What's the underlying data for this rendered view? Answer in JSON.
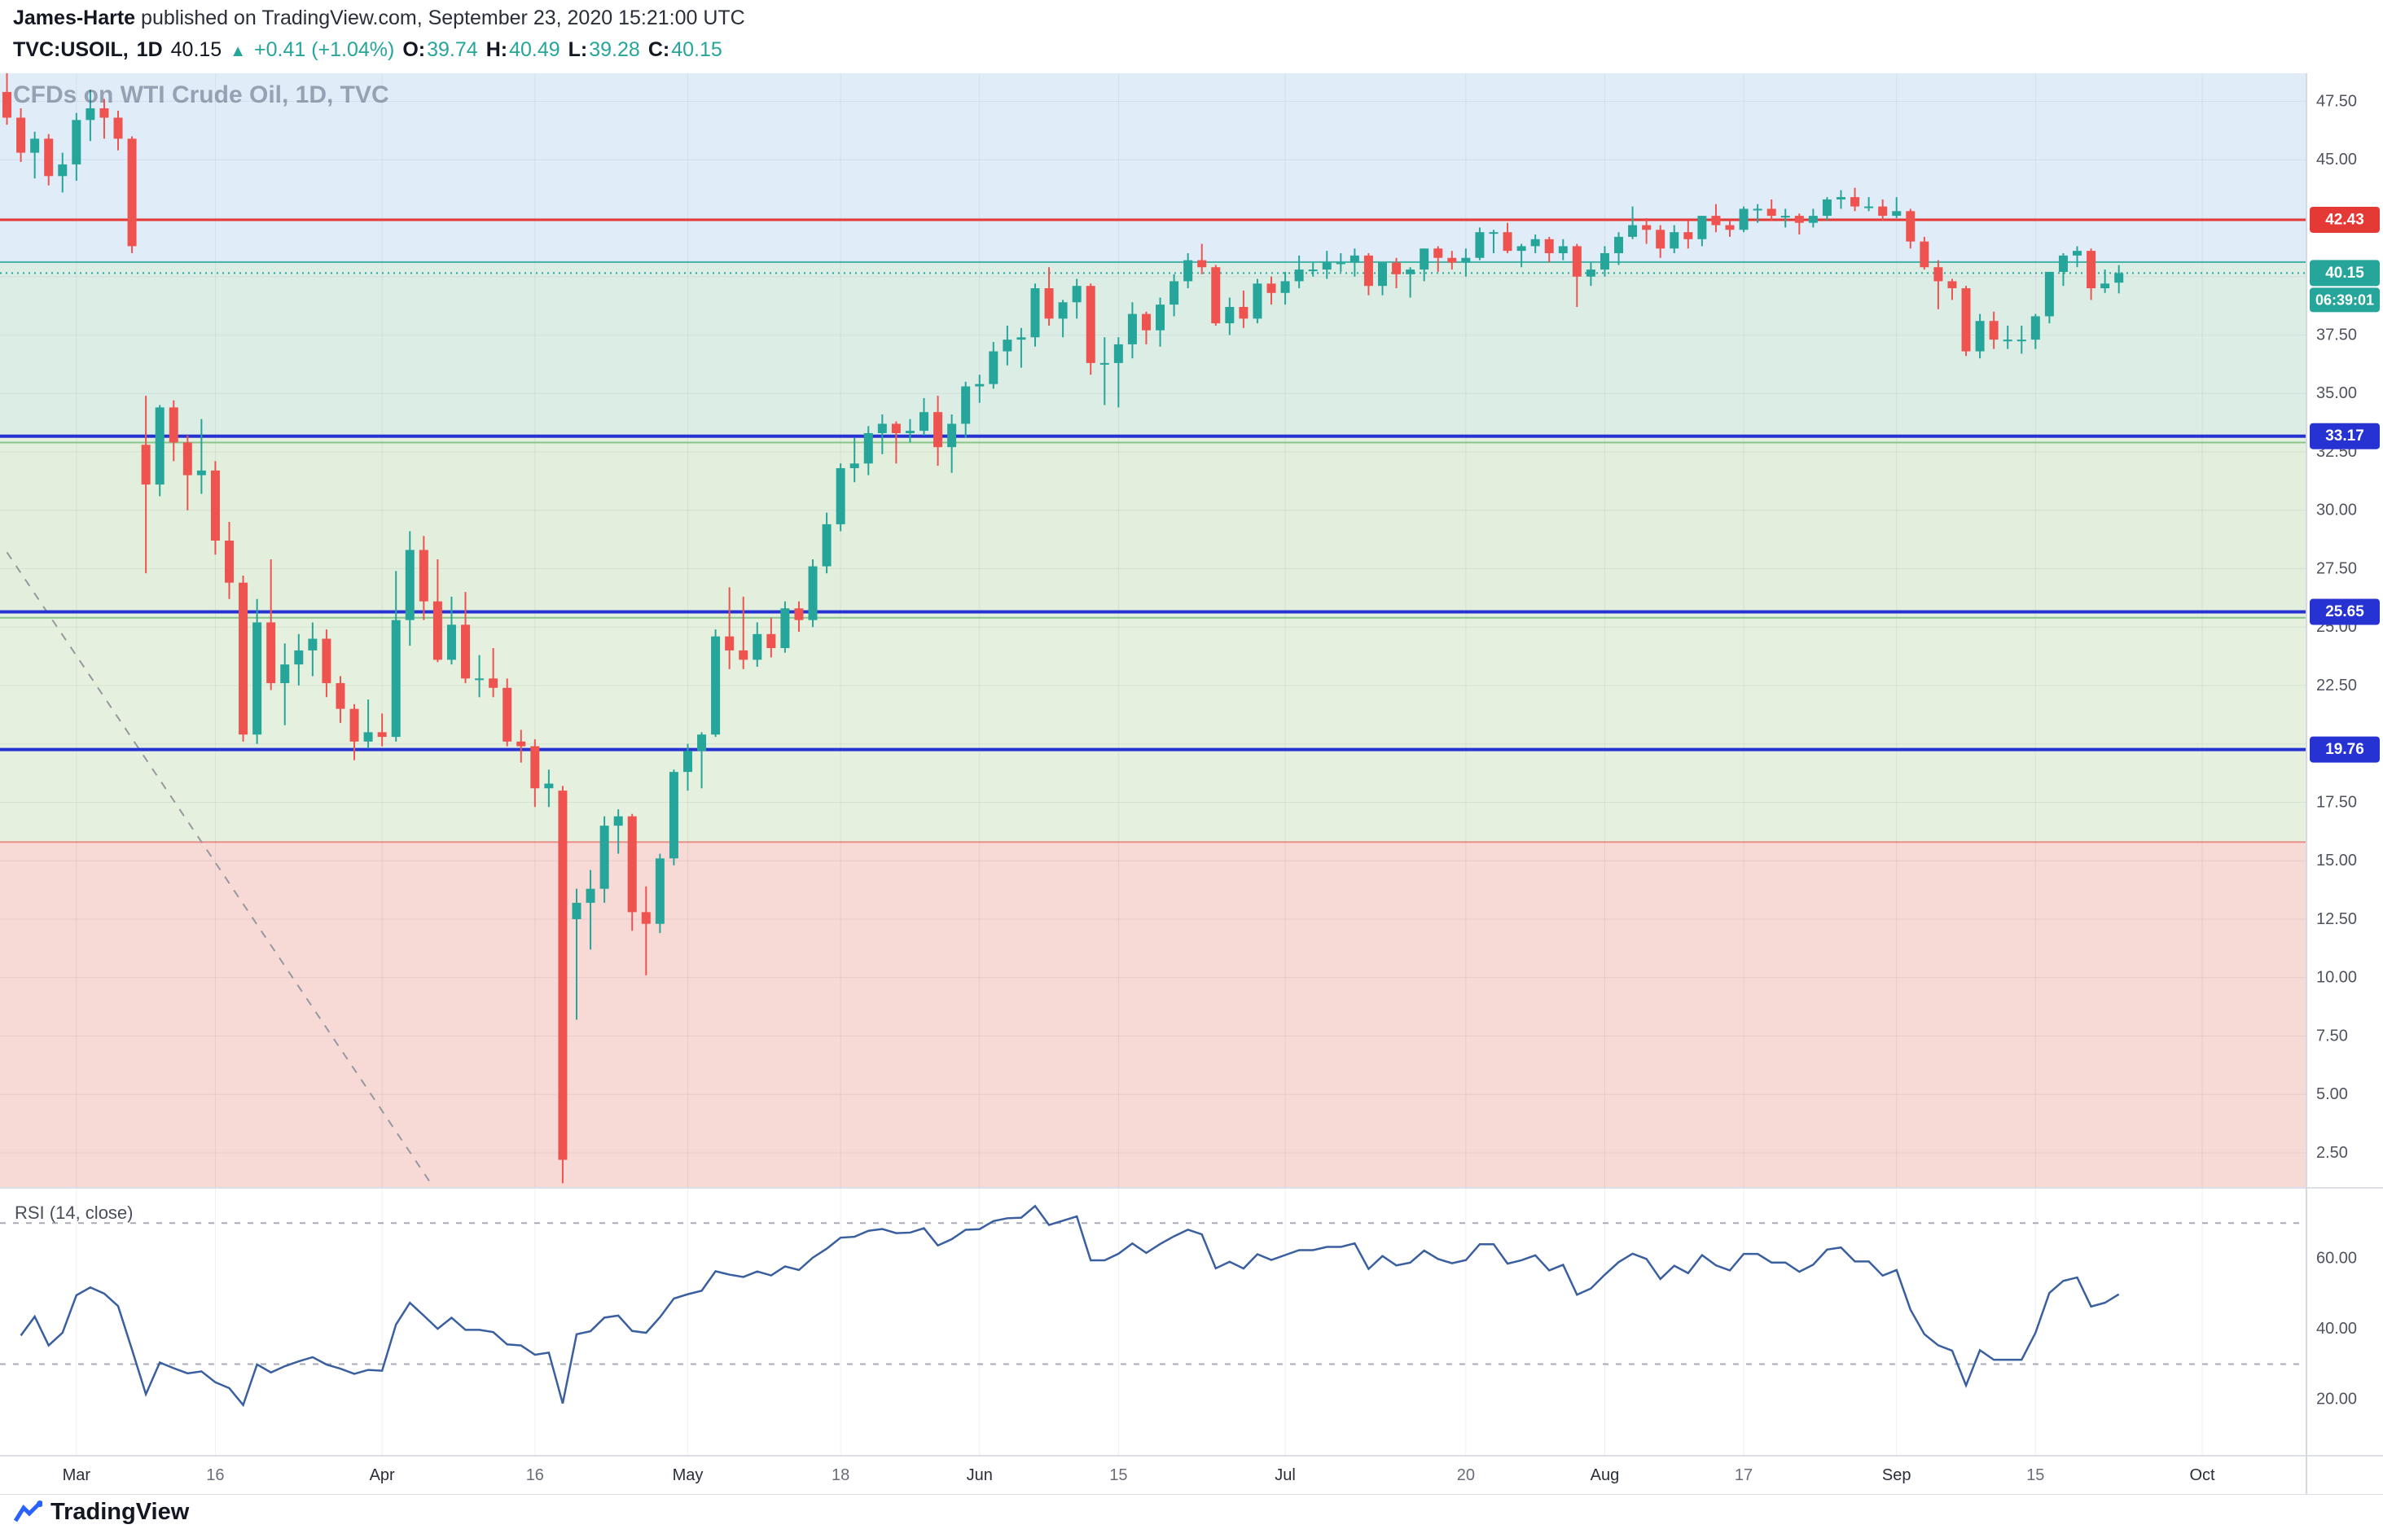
{
  "header": {
    "author": "James-Harte",
    "published": "published on TradingView.com, September 23, 2020 15:21:00 UTC",
    "symbol": "TVC:USOIL,",
    "interval": "1D",
    "last_price": "40.15",
    "change_arrow": "▲",
    "change_text": "+0.41 (+1.04%)",
    "ohlc": [
      {
        "label": "O:",
        "value": "39.74"
      },
      {
        "label": "H:",
        "value": "40.49"
      },
      {
        "label": "L:",
        "value": "39.28"
      },
      {
        "label": "C:",
        "value": "40.15"
      }
    ]
  },
  "watermark": "CFDs on WTI Crude Oil, 1D, TVC",
  "footer": {
    "brand": "TradingView"
  },
  "colors": {
    "up": "#26a69a",
    "down": "#ef5350",
    "level_blue": "#2732d3",
    "level_red": "#e53935",
    "last_price": "#26a69a",
    "rsi_line": "#3a5f9e",
    "band_blue": "#e0edf8",
    "band_teal": "#dcede6",
    "band_green_upper": "#e2efdc",
    "band_green_lower": "#e5f1de",
    "band_red": "#f7d9d6",
    "grid": "rgba(42,46,57,0.07)",
    "axis_text": "#50535e",
    "time_major": "#2a2e39",
    "time_minor": "#6a6e79"
  },
  "chart_data": {
    "type": "candlestick",
    "title": "CFDs on WTI Crude Oil, 1D, TVC",
    "symbol": "TVC:USOIL",
    "interval": "1D",
    "price_axis": {
      "min": 1.0,
      "max": 48.7,
      "tick_step": 2.5,
      "visible_ticks": [
        "47.50",
        "45.00",
        "37.50",
        "35.00",
        "32.50",
        "30.00",
        "27.50",
        "25.00",
        "22.50",
        "17.50",
        "15.00",
        "12.50",
        "10.00",
        "7.50",
        "5.00",
        "2.50"
      ]
    },
    "time_axis": {
      "total_slots": 166,
      "labels": [
        {
          "text": "Mar",
          "slot": 5,
          "major": true
        },
        {
          "text": "16",
          "slot": 15,
          "major": false
        },
        {
          "text": "Apr",
          "slot": 27,
          "major": true
        },
        {
          "text": "16",
          "slot": 38,
          "major": false
        },
        {
          "text": "May",
          "slot": 49,
          "major": true
        },
        {
          "text": "18",
          "slot": 60,
          "major": false
        },
        {
          "text": "Jun",
          "slot": 70,
          "major": true
        },
        {
          "text": "15",
          "slot": 80,
          "major": false
        },
        {
          "text": "Jul",
          "slot": 92,
          "major": true
        },
        {
          "text": "20",
          "slot": 105,
          "major": false
        },
        {
          "text": "Aug",
          "slot": 115,
          "major": true
        },
        {
          "text": "17",
          "slot": 125,
          "major": false
        },
        {
          "text": "Sep",
          "slot": 136,
          "major": true
        },
        {
          "text": "15",
          "slot": 146,
          "major": false
        },
        {
          "text": "Oct",
          "slot": 158,
          "major": true
        }
      ]
    },
    "bands": [
      {
        "from": 48.7,
        "to": 40.62,
        "color_key": "band_blue"
      },
      {
        "from": 40.62,
        "to": 33.17,
        "color_key": "band_teal"
      },
      {
        "from": 33.17,
        "to": 25.65,
        "color_key": "band_green_upper"
      },
      {
        "from": 25.65,
        "to": 15.8,
        "color_key": "band_green_lower"
      },
      {
        "from": 15.8,
        "to": 1.0,
        "color_key": "band_red"
      }
    ],
    "band_edges": [
      {
        "price": 40.62,
        "color": "rgba(38,166,154,0.85)",
        "width": 2
      },
      {
        "price": 32.9,
        "color": "rgba(67,160,71,0.55)",
        "width": 2
      },
      {
        "price": 25.4,
        "color": "rgba(67,160,71,0.55)",
        "width": 2
      },
      {
        "price": 15.8,
        "color": "rgba(229,57,53,0.5)",
        "width": 2
      }
    ],
    "levels": [
      {
        "price": 42.43,
        "label": "42.43",
        "color": "#e53935",
        "width": 3
      },
      {
        "price": 33.17,
        "label": "33.17",
        "color": "#2732d3",
        "width": 4
      },
      {
        "price": 25.65,
        "label": "25.65",
        "color": "#2732d3",
        "width": 4
      },
      {
        "price": 19.76,
        "label": "19.76",
        "color": "#2732d3",
        "width": 4
      }
    ],
    "last_price": {
      "value": 40.15,
      "label": "40.15",
      "countdown": "06:39:01",
      "color": "#26a69a"
    },
    "trendline": {
      "from_slot": 0,
      "from_price": 28.2,
      "to_slot": 30.5,
      "to_price": 1.2,
      "style": "dashed",
      "color": "#9598a1"
    },
    "candles": {
      "up_color": "#26a69a",
      "down_color": "#ef5350",
      "ohlc": [
        [
          47.9,
          48.7,
          46.5,
          46.8
        ],
        [
          46.8,
          47.2,
          44.9,
          45.3
        ],
        [
          45.3,
          46.2,
          44.2,
          45.9
        ],
        [
          45.9,
          46.1,
          43.9,
          44.3
        ],
        [
          44.3,
          45.3,
          43.6,
          44.8
        ],
        [
          44.8,
          47.0,
          44.1,
          46.7
        ],
        [
          46.7,
          48.0,
          45.8,
          47.2
        ],
        [
          47.2,
          47.6,
          45.9,
          46.8
        ],
        [
          46.8,
          47.1,
          45.4,
          45.9
        ],
        [
          45.9,
          46.0,
          41.0,
          41.3
        ],
        [
          32.8,
          34.9,
          27.3,
          31.1
        ],
        [
          31.1,
          34.5,
          30.6,
          34.4
        ],
        [
          34.4,
          34.7,
          32.1,
          32.9
        ],
        [
          32.9,
          33.2,
          30.0,
          31.5
        ],
        [
          31.5,
          33.9,
          30.7,
          31.7
        ],
        [
          31.7,
          32.1,
          28.1,
          28.7
        ],
        [
          28.7,
          29.5,
          26.2,
          26.9
        ],
        [
          26.9,
          27.2,
          20.1,
          20.4
        ],
        [
          20.4,
          26.2,
          20.0,
          25.2
        ],
        [
          25.2,
          27.9,
          22.3,
          22.6
        ],
        [
          22.6,
          24.3,
          20.8,
          23.4
        ],
        [
          23.4,
          24.7,
          22.5,
          24.0
        ],
        [
          24.0,
          25.2,
          22.9,
          24.5
        ],
        [
          24.5,
          24.9,
          22.0,
          22.6
        ],
        [
          22.6,
          22.9,
          20.9,
          21.5
        ],
        [
          21.5,
          21.7,
          19.3,
          20.1
        ],
        [
          20.1,
          21.9,
          19.8,
          20.5
        ],
        [
          20.5,
          21.3,
          19.9,
          20.3
        ],
        [
          20.3,
          27.4,
          20.1,
          25.3
        ],
        [
          25.3,
          29.1,
          24.2,
          28.3
        ],
        [
          28.3,
          28.9,
          25.3,
          26.1
        ],
        [
          26.1,
          27.9,
          23.5,
          23.6
        ],
        [
          23.6,
          26.3,
          23.4,
          25.1
        ],
        [
          25.1,
          26.5,
          22.6,
          22.8
        ],
        [
          22.8,
          23.8,
          22.0,
          22.8
        ],
        [
          22.8,
          24.1,
          22.0,
          22.4
        ],
        [
          22.4,
          22.8,
          19.9,
          20.1
        ],
        [
          20.1,
          20.6,
          19.2,
          19.9
        ],
        [
          19.9,
          20.2,
          17.3,
          18.1
        ],
        [
          18.1,
          18.9,
          17.3,
          18.3
        ],
        [
          18.0,
          18.2,
          1.2,
          2.2
        ],
        [
          12.5,
          13.8,
          8.2,
          13.2
        ],
        [
          13.2,
          14.6,
          11.2,
          13.8
        ],
        [
          13.8,
          16.9,
          13.2,
          16.5
        ],
        [
          16.5,
          17.2,
          15.3,
          16.9
        ],
        [
          16.9,
          17.0,
          12.0,
          12.8
        ],
        [
          12.8,
          13.9,
          10.1,
          12.3
        ],
        [
          12.3,
          15.3,
          11.9,
          15.1
        ],
        [
          15.1,
          18.9,
          14.8,
          18.8
        ],
        [
          18.8,
          20.0,
          18.0,
          19.7
        ],
        [
          19.7,
          20.5,
          18.1,
          20.4
        ],
        [
          20.4,
          24.9,
          20.3,
          24.6
        ],
        [
          24.6,
          26.7,
          23.2,
          24.0
        ],
        [
          24.0,
          26.3,
          23.2,
          23.6
        ],
        [
          23.6,
          25.2,
          23.3,
          24.7
        ],
        [
          24.7,
          25.4,
          23.7,
          24.1
        ],
        [
          24.1,
          26.1,
          23.9,
          25.8
        ],
        [
          25.8,
          26.1,
          24.8,
          25.3
        ],
        [
          25.3,
          27.9,
          25.0,
          27.6
        ],
        [
          27.6,
          29.9,
          27.3,
          29.4
        ],
        [
          29.4,
          32.0,
          29.1,
          31.8
        ],
        [
          31.8,
          33.1,
          31.2,
          32.0
        ],
        [
          32.0,
          33.6,
          31.5,
          33.3
        ],
        [
          33.3,
          34.1,
          32.4,
          33.7
        ],
        [
          33.7,
          33.8,
          32.0,
          33.3
        ],
        [
          33.3,
          33.9,
          32.9,
          33.4
        ],
        [
          33.4,
          34.8,
          33.2,
          34.2
        ],
        [
          34.2,
          34.9,
          31.9,
          32.7
        ],
        [
          32.7,
          34.1,
          31.6,
          33.7
        ],
        [
          33.7,
          35.5,
          33.1,
          35.3
        ],
        [
          35.3,
          35.8,
          34.6,
          35.4
        ],
        [
          35.4,
          37.2,
          35.2,
          36.8
        ],
        [
          36.8,
          37.9,
          36.2,
          37.3
        ],
        [
          37.3,
          37.8,
          36.1,
          37.4
        ],
        [
          37.4,
          39.7,
          37.0,
          39.5
        ],
        [
          39.5,
          40.4,
          37.9,
          38.2
        ],
        [
          38.2,
          39.0,
          37.4,
          38.9
        ],
        [
          38.9,
          39.9,
          38.2,
          39.6
        ],
        [
          39.6,
          39.7,
          35.8,
          36.3
        ],
        [
          36.3,
          37.4,
          34.5,
          36.3
        ],
        [
          36.3,
          37.4,
          34.4,
          37.1
        ],
        [
          37.1,
          38.9,
          36.5,
          38.4
        ],
        [
          38.4,
          38.5,
          37.1,
          37.7
        ],
        [
          37.7,
          39.1,
          37.0,
          38.8
        ],
        [
          38.8,
          40.1,
          38.3,
          39.8
        ],
        [
          39.8,
          41.0,
          39.5,
          40.7
        ],
        [
          40.7,
          41.4,
          40.1,
          40.4
        ],
        [
          40.4,
          40.5,
          37.9,
          38.0
        ],
        [
          38.0,
          39.1,
          37.5,
          38.7
        ],
        [
          38.7,
          39.4,
          37.8,
          38.2
        ],
        [
          38.2,
          39.9,
          38.0,
          39.7
        ],
        [
          39.7,
          40.0,
          38.8,
          39.3
        ],
        [
          39.3,
          40.2,
          38.8,
          39.8
        ],
        [
          39.8,
          40.9,
          39.5,
          40.3
        ],
        [
          40.3,
          40.6,
          40.0,
          40.3
        ],
        [
          40.3,
          41.1,
          39.9,
          40.6
        ],
        [
          40.6,
          41.0,
          40.2,
          40.6
        ],
        [
          40.6,
          41.2,
          40.0,
          40.9
        ],
        [
          40.9,
          41.0,
          39.2,
          39.6
        ],
        [
          39.6,
          40.6,
          39.2,
          40.6
        ],
        [
          40.6,
          40.8,
          39.5,
          40.1
        ],
        [
          40.1,
          40.4,
          39.1,
          40.3
        ],
        [
          40.3,
          41.2,
          39.8,
          41.2
        ],
        [
          41.2,
          41.3,
          40.2,
          40.8
        ],
        [
          40.8,
          41.1,
          40.3,
          40.6
        ],
        [
          40.6,
          41.2,
          40.0,
          40.8
        ],
        [
          40.8,
          42.1,
          40.7,
          41.9
        ],
        [
          41.9,
          42.0,
          41.0,
          41.9
        ],
        [
          41.9,
          42.3,
          41.0,
          41.1
        ],
        [
          41.1,
          41.4,
          40.4,
          41.3
        ],
        [
          41.3,
          41.8,
          41.0,
          41.6
        ],
        [
          41.6,
          41.7,
          40.6,
          41.0
        ],
        [
          41.0,
          41.6,
          40.7,
          41.3
        ],
        [
          41.3,
          41.4,
          38.7,
          40.0
        ],
        [
          40.0,
          40.6,
          39.6,
          40.3
        ],
        [
          40.3,
          41.3,
          40.0,
          41.0
        ],
        [
          41.0,
          41.9,
          40.5,
          41.7
        ],
        [
          41.7,
          43.0,
          41.6,
          42.2
        ],
        [
          42.2,
          42.5,
          41.4,
          42.0
        ],
        [
          42.0,
          42.2,
          40.8,
          41.2
        ],
        [
          41.2,
          42.2,
          41.0,
          41.9
        ],
        [
          41.9,
          42.4,
          41.2,
          41.6
        ],
        [
          41.6,
          42.6,
          41.3,
          42.6
        ],
        [
          42.6,
          43.1,
          41.9,
          42.2
        ],
        [
          42.2,
          42.4,
          41.7,
          42.0
        ],
        [
          42.0,
          43.0,
          41.9,
          42.9
        ],
        [
          42.9,
          43.1,
          42.3,
          42.9
        ],
        [
          42.9,
          43.3,
          42.4,
          42.6
        ],
        [
          42.6,
          42.9,
          42.1,
          42.6
        ],
        [
          42.6,
          42.7,
          41.8,
          42.3
        ],
        [
          42.3,
          42.9,
          42.1,
          42.6
        ],
        [
          42.6,
          43.4,
          42.4,
          43.3
        ],
        [
          43.3,
          43.7,
          42.9,
          43.4
        ],
        [
          43.4,
          43.8,
          42.8,
          43.0
        ],
        [
          43.0,
          43.4,
          42.8,
          43.0
        ],
        [
          43.0,
          43.3,
          42.4,
          42.6
        ],
        [
          42.6,
          43.4,
          42.5,
          42.8
        ],
        [
          42.8,
          42.9,
          41.2,
          41.5
        ],
        [
          41.5,
          41.7,
          40.3,
          40.4
        ],
        [
          40.4,
          40.7,
          38.6,
          39.8
        ],
        [
          39.8,
          39.9,
          39.0,
          39.5
        ],
        [
          39.5,
          39.6,
          36.6,
          36.8
        ],
        [
          36.8,
          38.4,
          36.5,
          38.1
        ],
        [
          38.1,
          38.5,
          36.9,
          37.3
        ],
        [
          37.3,
          37.9,
          36.9,
          37.3
        ],
        [
          37.3,
          37.9,
          36.7,
          37.3
        ],
        [
          37.3,
          38.4,
          36.9,
          38.3
        ],
        [
          38.3,
          40.2,
          38.0,
          40.2
        ],
        [
          40.2,
          41.0,
          39.6,
          40.9
        ],
        [
          40.9,
          41.3,
          40.4,
          41.1
        ],
        [
          41.1,
          41.2,
          39.0,
          39.5
        ],
        [
          39.5,
          40.3,
          39.3,
          39.7
        ],
        [
          39.74,
          40.49,
          39.28,
          40.15
        ]
      ]
    },
    "rsi": {
      "label": "RSI (14, close)",
      "period": 14,
      "source": "close",
      "derived": true,
      "range": [
        4,
        80
      ],
      "ticks": [
        "60.00",
        "40.00",
        "20.00"
      ],
      "tick_values": [
        60,
        40,
        20
      ],
      "dashed_levels": [
        70,
        30
      ]
    }
  }
}
